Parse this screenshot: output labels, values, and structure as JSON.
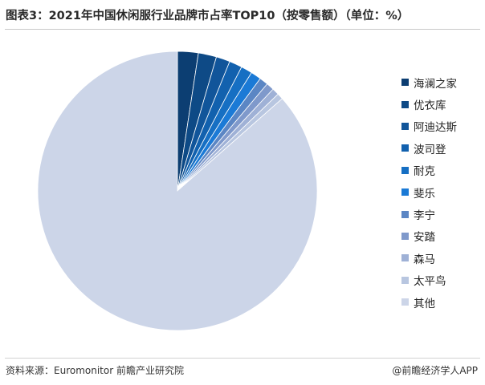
{
  "title": "图表3：2021年中国休闲服行业品牌市占率TOP10（按零售额）（单位：%）",
  "footer": {
    "source": "资料来源：Euromonitor 前瞻产业研究院",
    "credit": "@前瞻经济学人APP"
  },
  "chart_data": {
    "type": "pie",
    "title": "图表3：2021年中国休闲服行业品牌市占率TOP10（按零售额）（单位：%）",
    "start_angle": "12 o'clock, clockwise",
    "legend_position": "right",
    "data_labels_shown": false,
    "slices": [
      {
        "label": "海澜之家",
        "value": 2.4,
        "color": "#0c3e72"
      },
      {
        "label": "优衣库",
        "value": 2.1,
        "color": "#0e4a86"
      },
      {
        "label": "阿迪达斯",
        "value": 1.6,
        "color": "#11559a"
      },
      {
        "label": "波司登",
        "value": 1.5,
        "color": "#1261ae"
      },
      {
        "label": "耐克",
        "value": 1.3,
        "color": "#166fc3"
      },
      {
        "label": "斐乐",
        "value": 1.2,
        "color": "#1b7ad6"
      },
      {
        "label": "李宁",
        "value": 1.0,
        "color": "#5b86c4"
      },
      {
        "label": "安踏",
        "value": 0.9,
        "color": "#7f99cb"
      },
      {
        "label": "森马",
        "value": 0.8,
        "color": "#9fb1d6"
      },
      {
        "label": "太平鸟",
        "value": 0.7,
        "color": "#b8c6e0"
      },
      {
        "label": "其他",
        "value": 86.5,
        "color": "#ccd5e8"
      }
    ]
  }
}
